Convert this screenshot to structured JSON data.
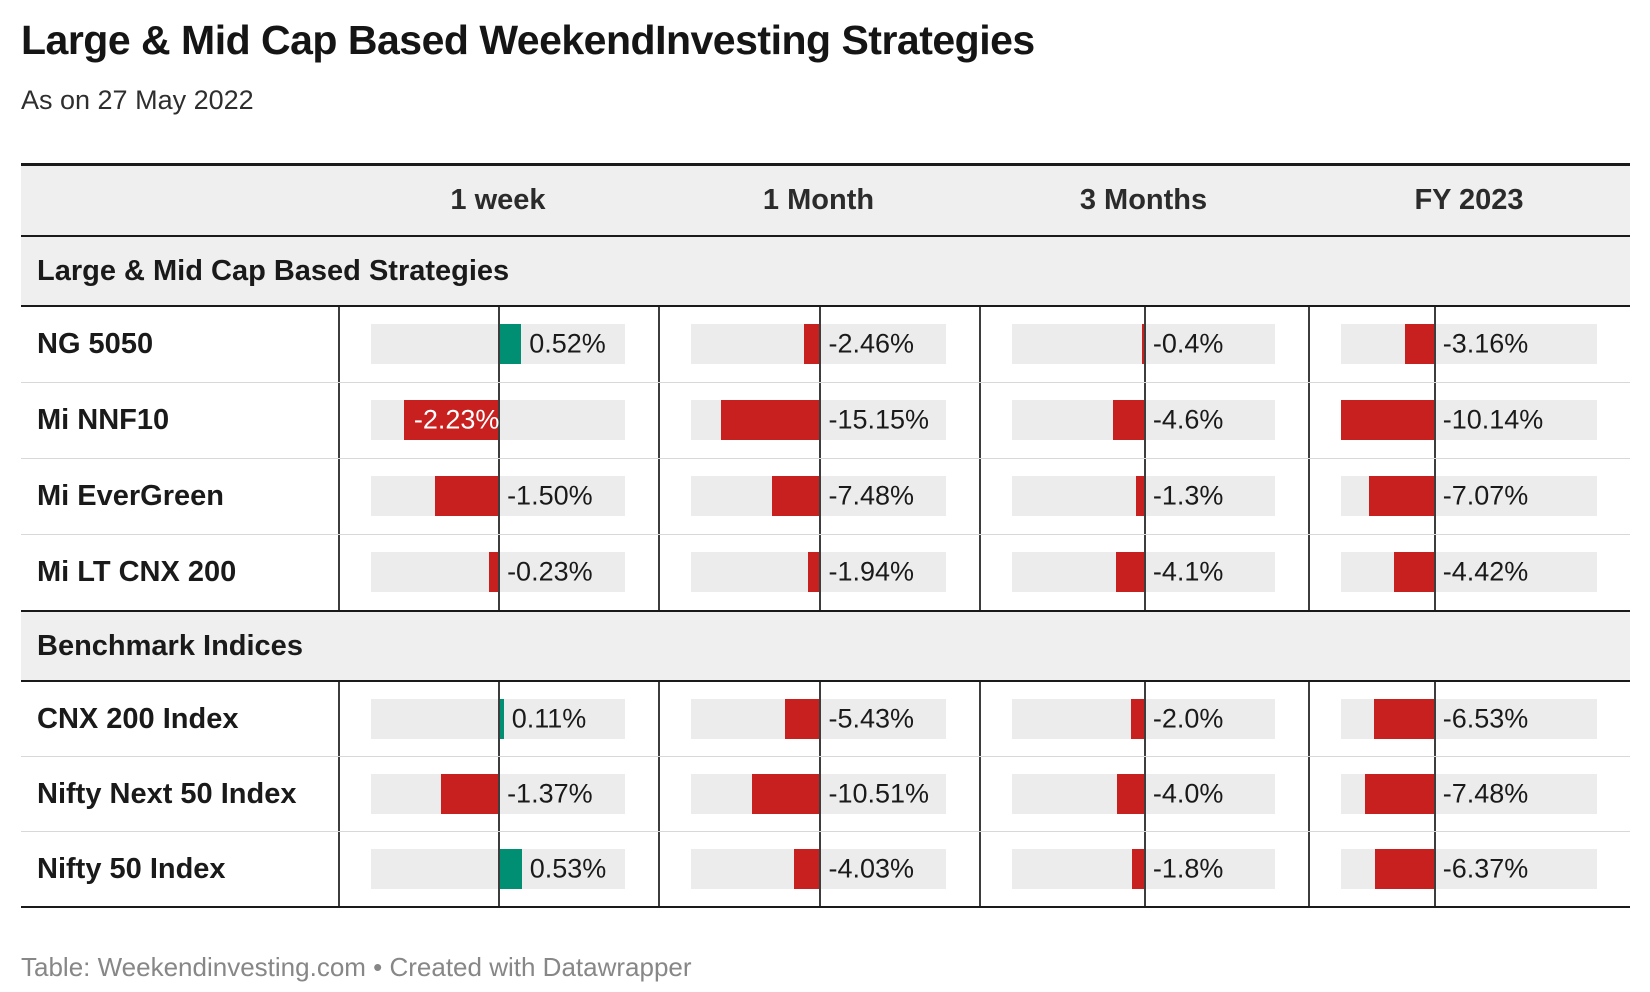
{
  "header": {
    "title": "Large & Mid Cap Based WeekendInvesting Strategies",
    "subtitle": "As on 27 May 2022"
  },
  "footer": {
    "text": "Table: Weekendinvesting.com • Created with Datawrapper"
  },
  "colors": {
    "positive": "#008f72",
    "negative": "#c7201f",
    "track": "#ececec",
    "band_bg": "#efefef",
    "rule_dark": "#1a1a1a",
    "axis_line": "#3d3d3d"
  },
  "chart_data": {
    "type": "table",
    "title": "Large & Mid Cap Based WeekendInvesting Strategies",
    "subtitle": "As on 27 May 2022",
    "value_unit": "%",
    "columns": [
      {
        "label": "1 week",
        "axis_min": -3.0,
        "axis_max": 2.95
      },
      {
        "label": "1 Month",
        "axis_min": -19.8,
        "axis_max": 19.2
      },
      {
        "label": "3 Months",
        "axis_min": -19.0,
        "axis_max": 18.6
      },
      {
        "label": "FY 2023",
        "axis_min": -10.05,
        "axis_max": 17.4
      }
    ],
    "sections": [
      {
        "heading": "Large & Mid Cap Based Strategies",
        "rows": [
          {
            "label": "NG 5050",
            "values": [
              0.52,
              -2.46,
              -0.4,
              -3.16
            ],
            "value_labels": [
              "0.52%",
              "-2.46%",
              "-0.4%",
              "-3.16%"
            ],
            "label_inside": [
              false,
              false,
              false,
              false
            ]
          },
          {
            "label": "Mi NNF10",
            "values": [
              -2.23,
              -15.15,
              -4.6,
              -10.14
            ],
            "value_labels": [
              "-2.23%",
              "-15.15%",
              "-4.6%",
              "-10.14%"
            ],
            "label_inside": [
              true,
              false,
              false,
              false
            ]
          },
          {
            "label": "Mi EverGreen",
            "values": [
              -1.5,
              -7.48,
              -1.3,
              -7.07
            ],
            "value_labels": [
              "-1.50%",
              "-7.48%",
              "-1.3%",
              "-7.07%"
            ],
            "label_inside": [
              false,
              false,
              false,
              false
            ]
          },
          {
            "label": "Mi LT CNX 200",
            "values": [
              -0.23,
              -1.94,
              -4.1,
              -4.42
            ],
            "value_labels": [
              "-0.23%",
              "-1.94%",
              "-4.1%",
              "-4.42%"
            ],
            "label_inside": [
              false,
              false,
              false,
              false
            ]
          }
        ]
      },
      {
        "heading": "Benchmark Indices",
        "rows": [
          {
            "label": "CNX 200 Index",
            "values": [
              0.11,
              -5.43,
              -2.0,
              -6.53
            ],
            "value_labels": [
              "0.11%",
              "-5.43%",
              "-2.0%",
              "-6.53%"
            ],
            "label_inside": [
              false,
              false,
              false,
              false
            ]
          },
          {
            "label": "Nifty Next 50 Index",
            "values": [
              -1.37,
              -10.51,
              -4.0,
              -7.48
            ],
            "value_labels": [
              "-1.37%",
              "-10.51%",
              "-4.0%",
              "-7.48%"
            ],
            "label_inside": [
              false,
              false,
              false,
              false
            ]
          },
          {
            "label": "Nifty 50 Index",
            "values": [
              0.53,
              -4.03,
              -1.8,
              -6.37
            ],
            "value_labels": [
              "0.53%",
              "-4.03%",
              "-1.8%",
              "-6.37%"
            ],
            "label_inside": [
              false,
              false,
              false,
              false
            ]
          }
        ]
      }
    ]
  }
}
